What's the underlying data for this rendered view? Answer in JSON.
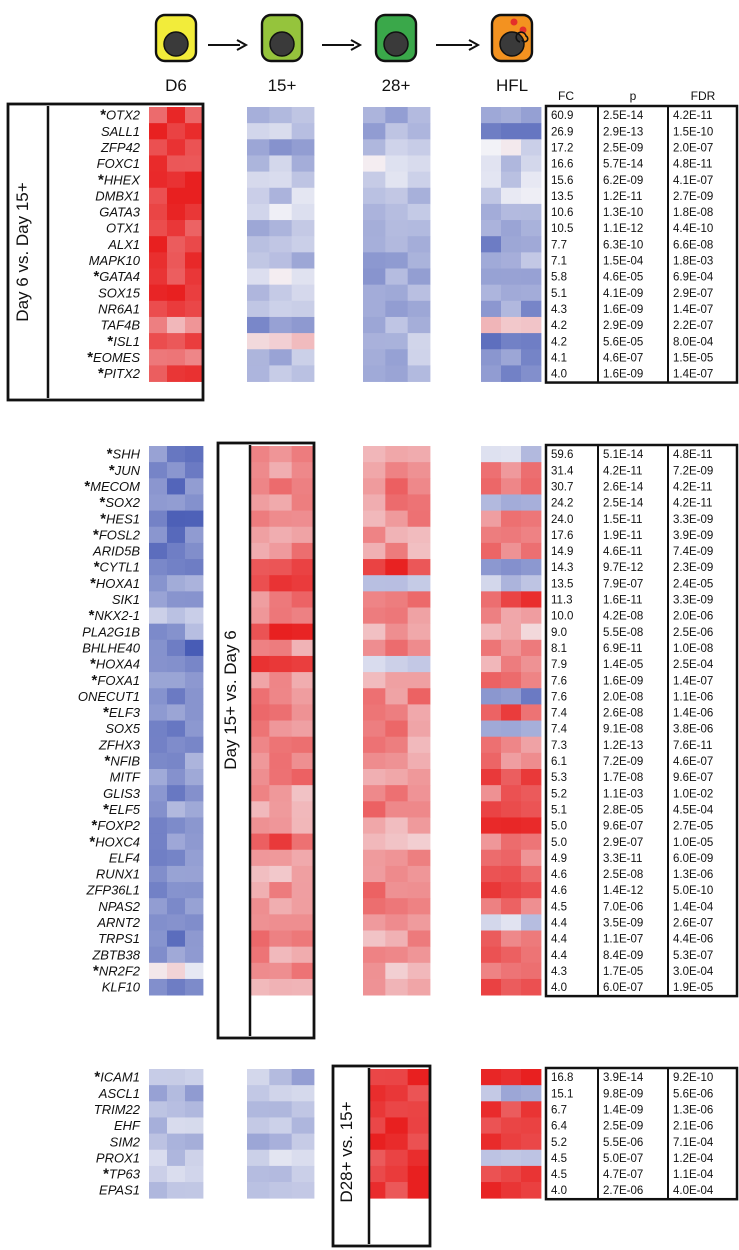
{
  "chart_data": {
    "type": "heatmap",
    "title": "",
    "columns": [
      "D6",
      "15+",
      "28+",
      "HFL"
    ],
    "stat_columns": [
      "FC",
      "p",
      "FDR"
    ],
    "comparisons": [
      "Day 6 vs. Day 15+",
      "Day 15+ vs. Day 6",
      "D28+ vs. 15+"
    ],
    "color_scale": {
      "low": "#3a4fb0",
      "mid": "#f4f4f8",
      "high": "#e82020"
    },
    "sections": [
      {
        "comparison": "Day 6 vs. Day 15+",
        "highlight_column": "D6",
        "genes": [
          {
            "name": "OTX2",
            "star": true,
            "fc": "60.9",
            "p": "2.5E-14",
            "fdr": "4.2E-11",
            "d6": 0.82,
            "d15": -0.3,
            "d28": -0.5,
            "hfl": -0.48
          },
          {
            "name": "SALL1",
            "star": false,
            "fc": "26.9",
            "p": "2.9E-13",
            "fdr": "1.5E-10",
            "d6": 0.85,
            "d15": -0.25,
            "d28": -0.4,
            "hfl": -0.65
          },
          {
            "name": "ZFP42",
            "star": false,
            "fc": "17.2",
            "p": "2.5E-09",
            "fdr": "2.0E-07",
            "d6": 0.88,
            "d15": -0.45,
            "d28": -0.35,
            "hfl": -0.1
          },
          {
            "name": "FOXC1",
            "star": false,
            "fc": "16.6",
            "p": "5.7E-14",
            "fdr": "4.8E-11",
            "d6": 0.9,
            "d15": -0.35,
            "d28": -0.05,
            "hfl": -0.2
          },
          {
            "name": "HHEX",
            "star": true,
            "fc": "15.6",
            "p": "6.2E-09",
            "fdr": "4.1E-07",
            "d6": 0.92,
            "d15": -0.3,
            "d28": -0.1,
            "hfl": -0.15
          },
          {
            "name": "DMBX1",
            "star": false,
            "fc": "13.5",
            "p": "1.2E-11",
            "fdr": "2.7E-09",
            "d6": 0.92,
            "d15": -0.25,
            "d28": -0.3,
            "hfl": -0.2
          },
          {
            "name": "GATA3",
            "star": false,
            "fc": "10.6",
            "p": "1.3E-10",
            "fdr": "1.8E-08",
            "d6": 0.9,
            "d15": -0.15,
            "d28": -0.3,
            "hfl": -0.3
          },
          {
            "name": "OTX1",
            "star": false,
            "fc": "10.5",
            "p": "1.1E-12",
            "fdr": "4.4E-10",
            "d6": 0.85,
            "d15": -0.3,
            "d28": -0.35,
            "hfl": -0.35
          },
          {
            "name": "ALX1",
            "star": false,
            "fc": "7.7",
            "p": "6.3E-10",
            "fdr": "6.6E-08",
            "d6": 0.88,
            "d15": -0.3,
            "d28": -0.4,
            "hfl": -0.6
          },
          {
            "name": "MAPK10",
            "star": false,
            "fc": "7.1",
            "p": "1.5E-04",
            "fdr": "1.8E-03",
            "d6": 0.8,
            "d15": -0.4,
            "d28": -0.45,
            "hfl": -0.4
          },
          {
            "name": "GATA4",
            "star": true,
            "fc": "5.8",
            "p": "4.6E-05",
            "fdr": "6.9E-04",
            "d6": 0.75,
            "d15": -0.1,
            "d28": -0.45,
            "hfl": -0.4
          },
          {
            "name": "SOX15",
            "star": false,
            "fc": "5.1",
            "p": "4.1E-09",
            "fdr": "2.9E-07",
            "d6": 0.88,
            "d15": -0.3,
            "d28": -0.4,
            "hfl": -0.55
          },
          {
            "name": "NR6A1",
            "star": false,
            "fc": "4.3",
            "p": "1.6E-09",
            "fdr": "1.4E-07",
            "d6": 0.7,
            "d15": -0.3,
            "d28": -0.4,
            "hfl": -0.5
          },
          {
            "name": "TAF4B",
            "star": false,
            "fc": "4.2",
            "p": "2.9E-09",
            "fdr": "2.2E-07",
            "d6": 0.45,
            "d15": -0.65,
            "d28": -0.45,
            "hfl": 0.3
          },
          {
            "name": "ISL1",
            "star": true,
            "fc": "4.2",
            "p": "5.6E-05",
            "fdr": "8.0E-04",
            "d6": 0.88,
            "d15": 0.2,
            "d28": -0.25,
            "hfl": -0.65
          },
          {
            "name": "EOMES",
            "star": true,
            "fc": "4.1",
            "p": "4.6E-07",
            "fdr": "1.5E-05",
            "d6": 0.55,
            "d15": -0.35,
            "d28": -0.35,
            "hfl": -0.55
          },
          {
            "name": "PITX2",
            "star": true,
            "fc": "4.0",
            "p": "1.6E-09",
            "fdr": "1.4E-07",
            "d6": 0.8,
            "d15": -0.3,
            "d28": -0.4,
            "hfl": -0.6
          }
        ]
      },
      {
        "comparison": "Day 15+ vs. Day 6",
        "highlight_column": "15+",
        "genes": [
          {
            "name": "SHH",
            "star": true,
            "fc": "59.6",
            "p": "5.1E-14",
            "fdr": "4.8E-11",
            "d6": -0.65,
            "d15": 0.55,
            "d28": 0.4,
            "hfl": -0.2
          },
          {
            "name": "JUN",
            "star": true,
            "fc": "31.4",
            "p": "4.2E-11",
            "fdr": "7.2E-09",
            "d6": -0.7,
            "d15": 0.5,
            "d28": 0.45,
            "hfl": 0.5
          },
          {
            "name": "MECOM",
            "star": true,
            "fc": "30.7",
            "p": "2.6E-14",
            "fdr": "4.2E-11",
            "d6": -0.7,
            "d15": 0.5,
            "d28": 0.55,
            "hfl": 0.55
          },
          {
            "name": "SOX2",
            "star": true,
            "fc": "24.2",
            "p": "2.5E-14",
            "fdr": "4.2E-11",
            "d6": -0.7,
            "d15": 0.4,
            "d28": 0.5,
            "hfl": -0.3
          },
          {
            "name": "HES1",
            "star": true,
            "fc": "24.0",
            "p": "1.5E-11",
            "fdr": "3.3E-09",
            "d6": -0.8,
            "d15": 0.4,
            "d28": 0.45,
            "hfl": 0.45
          },
          {
            "name": "FOSL2",
            "star": true,
            "fc": "17.6",
            "p": "1.9E-11",
            "fdr": "3.9E-09",
            "d6": -0.7,
            "d15": 0.45,
            "d28": 0.4,
            "hfl": 0.6
          },
          {
            "name": "ARID5B",
            "star": false,
            "fc": "14.9",
            "p": "4.6E-11",
            "fdr": "7.4E-09",
            "d6": -0.65,
            "d15": 0.5,
            "d28": 0.4,
            "hfl": 0.55
          },
          {
            "name": "CYTL1",
            "star": true,
            "fc": "14.3",
            "p": "9.7E-12",
            "fdr": "2.3E-09",
            "d6": -0.6,
            "d15": 0.75,
            "d28": 0.85,
            "hfl": -0.55
          },
          {
            "name": "HOXA1",
            "star": true,
            "fc": "13.5",
            "p": "7.9E-07",
            "fdr": "2.4E-05",
            "d6": -0.5,
            "d15": 0.8,
            "d28": -0.2,
            "hfl": -0.3
          },
          {
            "name": "SIK1",
            "star": false,
            "fc": "11.3",
            "p": "1.6E-11",
            "fdr": "3.3E-09",
            "d6": -0.6,
            "d15": 0.55,
            "d28": 0.5,
            "hfl": 0.8
          },
          {
            "name": "NKX2-1",
            "star": true,
            "fc": "10.0",
            "p": "4.2E-08",
            "fdr": "2.0E-06",
            "d6": -0.35,
            "d15": 0.6,
            "d28": 0.45,
            "hfl": 0.4
          },
          {
            "name": "PLA2G1B",
            "star": false,
            "fc": "9.0",
            "p": "5.5E-08",
            "fdr": "2.5E-06",
            "d6": -0.5,
            "d15": 0.85,
            "d28": 0.4,
            "hfl": 0.3
          },
          {
            "name": "BHLHE40",
            "star": false,
            "fc": "8.1",
            "p": "6.9E-11",
            "fdr": "1.0E-08",
            "d6": -0.75,
            "d15": 0.4,
            "d28": 0.5,
            "hfl": 0.55
          },
          {
            "name": "HOXA4",
            "star": true,
            "fc": "7.9",
            "p": "1.4E-05",
            "fdr": "2.5E-04",
            "d6": -0.5,
            "d15": 0.8,
            "d28": -0.25,
            "hfl": 0.4
          },
          {
            "name": "FOXA1",
            "star": true,
            "fc": "7.6",
            "p": "1.6E-09",
            "fdr": "1.4E-07",
            "d6": -0.4,
            "d15": 0.5,
            "d28": 0.4,
            "hfl": 0.65
          },
          {
            "name": "ONECUT1",
            "star": false,
            "fc": "7.6",
            "p": "2.0E-08",
            "fdr": "1.1E-06",
            "d6": -0.6,
            "d15": 0.55,
            "d28": 0.55,
            "hfl": -0.6
          },
          {
            "name": "ELF3",
            "star": true,
            "fc": "7.4",
            "p": "2.6E-08",
            "fdr": "1.4E-06",
            "d6": -0.55,
            "d15": 0.5,
            "d28": 0.45,
            "hfl": 0.7
          },
          {
            "name": "SOX5",
            "star": false,
            "fc": "7.4",
            "p": "9.1E-08",
            "fdr": "3.8E-06",
            "d6": -0.65,
            "d15": 0.55,
            "d28": 0.5,
            "hfl": -0.3
          },
          {
            "name": "ZFHX3",
            "star": false,
            "fc": "7.3",
            "p": "1.2E-13",
            "fdr": "7.6E-11",
            "d6": -0.6,
            "d15": 0.5,
            "d28": 0.45,
            "hfl": 0.5
          },
          {
            "name": "NFIB",
            "star": true,
            "fc": "6.1",
            "p": "7.2E-09",
            "fdr": "4.6E-07",
            "d6": -0.55,
            "d15": 0.45,
            "d28": 0.45,
            "hfl": 0.55
          },
          {
            "name": "MITF",
            "star": false,
            "fc": "5.3",
            "p": "1.7E-08",
            "fdr": "9.6E-07",
            "d6": -0.6,
            "d15": 0.6,
            "d28": 0.4,
            "hfl": 0.85
          },
          {
            "name": "GLIS3",
            "star": false,
            "fc": "5.2",
            "p": "1.1E-03",
            "fdr": "1.0E-02",
            "d6": -0.6,
            "d15": 0.4,
            "d28": 0.5,
            "hfl": 0.6
          },
          {
            "name": "ELF5",
            "star": true,
            "fc": "5.1",
            "p": "2.8E-05",
            "fdr": "4.5E-04",
            "d6": -0.45,
            "d15": 0.45,
            "d28": 0.55,
            "hfl": 0.8
          },
          {
            "name": "FOXP2",
            "star": true,
            "fc": "5.0",
            "p": "9.6E-07",
            "fdr": "2.7E-05",
            "d6": -0.55,
            "d15": 0.4,
            "d28": 0.4,
            "hfl": 0.85
          },
          {
            "name": "HOXC4",
            "star": true,
            "fc": "5.0",
            "p": "2.9E-07",
            "fdr": "1.0E-05",
            "d6": -0.55,
            "d15": 0.75,
            "d28": 0.2,
            "hfl": 0.6
          },
          {
            "name": "ELF4",
            "star": false,
            "fc": "4.9",
            "p": "3.3E-11",
            "fdr": "6.0E-09",
            "d6": -0.6,
            "d15": 0.4,
            "d28": 0.45,
            "hfl": 0.6
          },
          {
            "name": "RUNX1",
            "star": false,
            "fc": "4.6",
            "p": "2.5E-08",
            "fdr": "1.3E-06",
            "d6": -0.6,
            "d15": 0.25,
            "d28": 0.4,
            "hfl": 0.8
          },
          {
            "name": "ZFP36L1",
            "star": false,
            "fc": "4.6",
            "p": "1.4E-12",
            "fdr": "5.0E-10",
            "d6": -0.7,
            "d15": 0.4,
            "d28": 0.55,
            "hfl": 0.75
          },
          {
            "name": "NPAS2",
            "star": false,
            "fc": "4.5",
            "p": "7.0E-06",
            "fdr": "1.4E-04",
            "d6": -0.55,
            "d15": 0.35,
            "d28": 0.5,
            "hfl": 0.55
          },
          {
            "name": "ARNT2",
            "star": false,
            "fc": "4.4",
            "p": "3.5E-09",
            "fdr": "2.6E-07",
            "d6": -0.65,
            "d15": 0.55,
            "d28": 0.45,
            "hfl": -0.2
          },
          {
            "name": "TRPS1",
            "star": false,
            "fc": "4.4",
            "p": "1.1E-07",
            "fdr": "4.4E-06",
            "d6": -0.7,
            "d15": 0.5,
            "d28": 0.4,
            "hfl": 0.65
          },
          {
            "name": "ZBTB38",
            "star": false,
            "fc": "4.4",
            "p": "8.4E-09",
            "fdr": "5.3E-07",
            "d6": -0.5,
            "d15": 0.45,
            "d28": 0.4,
            "hfl": 0.6
          },
          {
            "name": "NR2F2",
            "star": true,
            "fc": "4.3",
            "p": "1.7E-05",
            "fdr": "3.0E-04",
            "d6": 0.05,
            "d15": 0.5,
            "d28": 0.35,
            "hfl": 0.7
          },
          {
            "name": "KLF10",
            "star": false,
            "fc": "4.0",
            "p": "6.0E-07",
            "fdr": "1.9E-05",
            "d6": -0.75,
            "d15": 0.3,
            "d28": 0.4,
            "hfl": 0.75
          }
        ]
      },
      {
        "comparison": "D28+ vs. 15+",
        "highlight_column": "28+",
        "genes": [
          {
            "name": "ICAM1",
            "star": true,
            "fc": "16.8",
            "p": "3.9E-14",
            "fdr": "9.2E-10",
            "d6": -0.35,
            "d15": -0.35,
            "d28": 0.9,
            "hfl": 0.9
          },
          {
            "name": "ASCL1",
            "star": false,
            "fc": "15.1",
            "p": "9.8E-09",
            "fdr": "5.6E-06",
            "d6": -0.4,
            "d15": -0.25,
            "d28": 0.85,
            "hfl": -0.4
          },
          {
            "name": "TRIM22",
            "star": false,
            "fc": "6.7",
            "p": "1.4E-09",
            "fdr": "1.3E-06",
            "d6": -0.35,
            "d15": -0.3,
            "d28": 0.85,
            "hfl": 0.85
          },
          {
            "name": "EHF",
            "star": false,
            "fc": "6.4",
            "p": "2.5E-09",
            "fdr": "2.1E-06",
            "d6": -0.3,
            "d15": -0.3,
            "d28": 0.9,
            "hfl": 0.9
          },
          {
            "name": "SIM2",
            "star": false,
            "fc": "5.2",
            "p": "5.5E-06",
            "fdr": "7.1E-04",
            "d6": -0.35,
            "d15": -0.3,
            "d28": 0.9,
            "hfl": 0.85
          },
          {
            "name": "PROX1",
            "star": false,
            "fc": "4.5",
            "p": "5.0E-07",
            "fdr": "1.2E-04",
            "d6": -0.25,
            "d15": -0.2,
            "d28": 0.9,
            "hfl": -0.2
          },
          {
            "name": "TP63",
            "star": true,
            "fc": "4.5",
            "p": "4.7E-07",
            "fdr": "1.1E-04",
            "d6": -0.25,
            "d15": -0.35,
            "d28": 0.9,
            "hfl": 0.8
          },
          {
            "name": "EPAS1",
            "star": false,
            "fc": "4.0",
            "p": "2.7E-06",
            "fdr": "4.0E-04",
            "d6": -0.3,
            "d15": -0.3,
            "d28": 0.9,
            "hfl": 0.9
          }
        ]
      }
    ]
  }
}
